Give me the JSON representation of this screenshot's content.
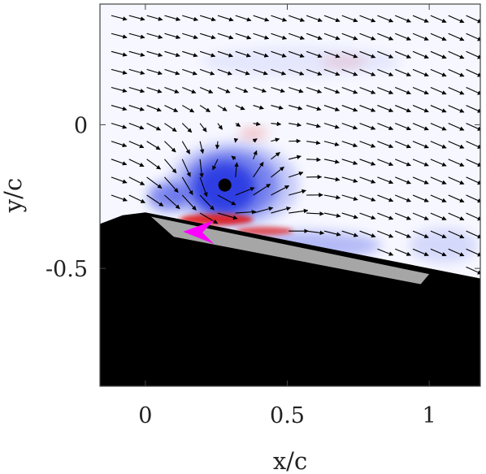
{
  "chart_data": {
    "type": "heatmap",
    "title": "",
    "xlabel": "x/c",
    "ylabel": "y/c",
    "xlim": [
      -0.16,
      1.18
    ],
    "ylim": [
      -0.91,
      0.42
    ],
    "xticks": [
      0,
      0.5,
      1
    ],
    "xtick_labels": [
      "0",
      "0.5",
      "1"
    ],
    "yticks": [
      0,
      -0.5
    ],
    "ytick_labels": [
      "0",
      "-0.5"
    ],
    "grid": false,
    "legend": "none",
    "colors": {
      "negative": "#1f2fe0",
      "positive": "#e11d1d",
      "body": "#000000",
      "plate": "#a6a6a6",
      "marker": "#ff00ff",
      "arrow": "#000000"
    },
    "vortex_center": {
      "x": 0.28,
      "y": -0.21
    },
    "surface_profile": [
      [
        -0.16,
        -0.345
      ],
      [
        -0.08,
        -0.315
      ],
      [
        0.0,
        -0.305
      ],
      [
        1.18,
        -0.535
      ]
    ],
    "plate_polygon": [
      [
        0.02,
        -0.32
      ],
      [
        1.0,
        -0.52
      ],
      [
        0.97,
        -0.555
      ],
      [
        0.1,
        -0.39
      ]
    ],
    "marker_position": {
      "x": 0.19,
      "y": -0.375
    },
    "vector_field": {
      "x_spacing": 0.0625,
      "y_spacing": 0.0625,
      "x_start": -0.12,
      "y_start": 0.38
    }
  }
}
